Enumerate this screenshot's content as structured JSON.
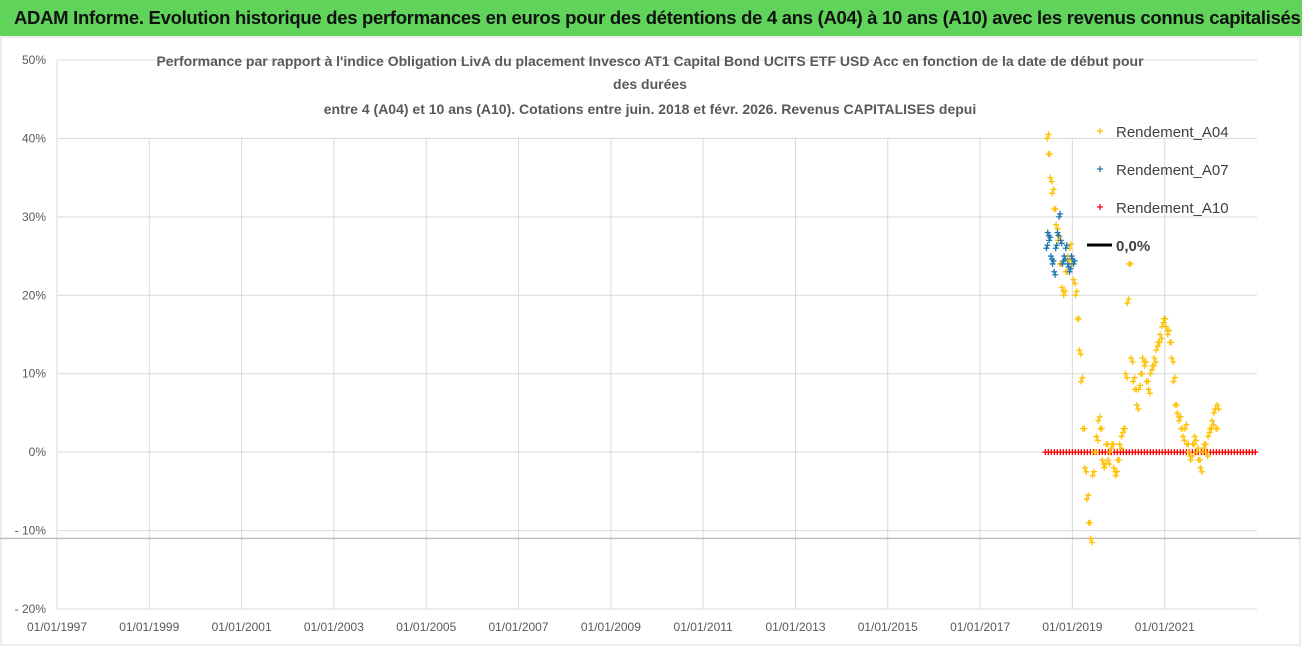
{
  "banner": {
    "title": "ADAM Informe. Evolution historique des performances en euros pour des détentions de 4 ans (A04) à 10 ans (A10) avec les revenus connus capitalisés"
  },
  "chart_data": {
    "type": "scatter",
    "title_lines": [
      "Performance par rapport à l'indice Obligation LivA  du placement Invesco AT1 Capital Bond UCITS ETF USD Acc en fonction de la date de début pour",
      "des durées",
      "entre 4 (A04) et 10 ans (A10).  Cotations entre juin. 2018 et févr. 2026. Revenus CAPITALISES depui"
    ],
    "xlabel": "",
    "ylabel": "",
    "x_ticks": [
      "01/01/1997",
      "01/01/1999",
      "01/01/2001",
      "01/01/2003",
      "01/01/2005",
      "01/01/2007",
      "01/01/2009",
      "01/01/2011",
      "01/01/2013",
      "01/01/2015",
      "01/01/2017",
      "01/01/2019",
      "01/01/2021"
    ],
    "xlim": [
      "1997-01-01",
      "2023-01-01"
    ],
    "y_ticks": [
      "50%",
      "40%",
      "30%",
      "20%",
      "10%",
      "0%",
      "- 10%",
      "- 20%"
    ],
    "ylim": [
      -20,
      50
    ],
    "grid": true,
    "legend_position": "right",
    "reference_line_y": -11,
    "series": [
      {
        "name": "Rendement_A04",
        "color": "#ffc000",
        "marker": "+",
        "points": [
          [
            "2018-06-15",
            40
          ],
          [
            "2018-06-25",
            38
          ],
          [
            "2018-07-10",
            35
          ],
          [
            "2018-07-25",
            33
          ],
          [
            "2018-08-10",
            31
          ],
          [
            "2018-08-25",
            29
          ],
          [
            "2018-09-10",
            27
          ],
          [
            "2018-09-25",
            24
          ],
          [
            "2018-10-10",
            21
          ],
          [
            "2018-10-25",
            20
          ],
          [
            "2018-11-10",
            23
          ],
          [
            "2018-11-25",
            25
          ],
          [
            "2018-12-10",
            26
          ],
          [
            "2018-12-25",
            24
          ],
          [
            "2019-01-10",
            22
          ],
          [
            "2019-01-25",
            20
          ],
          [
            "2019-02-10",
            17
          ],
          [
            "2019-02-25",
            13
          ],
          [
            "2019-03-10",
            9
          ],
          [
            "2019-03-25",
            3
          ],
          [
            "2019-04-10",
            -2
          ],
          [
            "2019-04-25",
            -6
          ],
          [
            "2019-05-10",
            -9
          ],
          [
            "2019-05-25",
            -11
          ],
          [
            "2019-06-10",
            -3
          ],
          [
            "2019-06-25",
            0
          ],
          [
            "2019-07-10",
            2
          ],
          [
            "2019-07-25",
            4
          ],
          [
            "2019-08-10",
            3
          ],
          [
            "2019-08-25",
            -1
          ],
          [
            "2019-09-10",
            -2
          ],
          [
            "2019-09-25",
            1
          ],
          [
            "2019-10-10",
            -1
          ],
          [
            "2019-10-25",
            0
          ],
          [
            "2019-11-10",
            1
          ],
          [
            "2019-11-25",
            -2
          ],
          [
            "2019-12-10",
            -3
          ],
          [
            "2019-12-25",
            -1
          ],
          [
            "2020-01-10",
            1
          ],
          [
            "2020-01-25",
            2
          ],
          [
            "2020-02-10",
            3
          ],
          [
            "2020-02-25",
            10
          ],
          [
            "2020-03-10",
            19
          ],
          [
            "2020-03-25",
            24
          ],
          [
            "2020-04-10",
            12
          ],
          [
            "2020-04-25",
            9
          ],
          [
            "2020-05-10",
            8
          ],
          [
            "2020-05-25",
            6
          ],
          [
            "2020-06-10",
            8
          ],
          [
            "2020-06-25",
            10
          ],
          [
            "2020-07-10",
            12
          ],
          [
            "2020-07-25",
            11
          ],
          [
            "2020-08-10",
            9
          ],
          [
            "2020-08-25",
            8
          ],
          [
            "2020-09-10",
            10
          ],
          [
            "2020-09-25",
            11
          ],
          [
            "2020-10-10",
            12
          ],
          [
            "2020-10-25",
            13
          ],
          [
            "2020-11-10",
            14
          ],
          [
            "2020-11-25",
            15
          ],
          [
            "2020-12-10",
            16
          ],
          [
            "2020-12-25",
            17
          ],
          [
            "2021-01-10",
            16
          ],
          [
            "2021-01-25",
            15
          ],
          [
            "2021-02-10",
            14
          ],
          [
            "2021-02-25",
            12
          ],
          [
            "2021-03-10",
            9
          ],
          [
            "2021-03-25",
            6
          ],
          [
            "2021-04-10",
            5
          ],
          [
            "2021-04-25",
            4
          ],
          [
            "2021-05-10",
            3
          ],
          [
            "2021-05-25",
            2
          ],
          [
            "2021-06-10",
            3
          ],
          [
            "2021-06-25",
            1
          ],
          [
            "2021-07-10",
            0
          ],
          [
            "2021-07-25",
            -1
          ],
          [
            "2021-08-10",
            1
          ],
          [
            "2021-08-25",
            2
          ],
          [
            "2021-09-10",
            0
          ],
          [
            "2021-09-25",
            -1
          ],
          [
            "2021-10-10",
            -2
          ],
          [
            "2021-10-25",
            0
          ],
          [
            "2021-11-10",
            1
          ],
          [
            "2021-11-25",
            0
          ],
          [
            "2021-12-10",
            2
          ],
          [
            "2021-12-25",
            3
          ],
          [
            "2022-01-10",
            4
          ],
          [
            "2022-01-25",
            5
          ],
          [
            "2022-02-10",
            3
          ],
          [
            "2022-02-20",
            6
          ]
        ]
      },
      {
        "name": "Rendement_A07",
        "color": "#1f77b4",
        "marker": "+",
        "points": [
          [
            "2018-06-10",
            26
          ],
          [
            "2018-06-20",
            28
          ],
          [
            "2018-07-01",
            27
          ],
          [
            "2018-07-15",
            25
          ],
          [
            "2018-07-28",
            24
          ],
          [
            "2018-08-10",
            23
          ],
          [
            "2018-08-22",
            26
          ],
          [
            "2018-09-05",
            28
          ],
          [
            "2018-09-18",
            30
          ],
          [
            "2018-10-01",
            27
          ],
          [
            "2018-10-15",
            24
          ],
          [
            "2018-10-28",
            25
          ],
          [
            "2018-11-10",
            26
          ],
          [
            "2018-11-25",
            24
          ],
          [
            "2018-12-10",
            23
          ],
          [
            "2018-12-25",
            25
          ],
          [
            "2019-01-10",
            24
          ]
        ]
      },
      {
        "name": "Rendement_A10",
        "color": "#ff0000",
        "marker": "+",
        "line_from": "2018-06-01",
        "line_to": "2023-01-01",
        "value": 0
      }
    ],
    "legend": [
      {
        "label": "Rendement_A04",
        "color": "#ffc000",
        "marker": "+"
      },
      {
        "label": "Rendement_A07",
        "color": "#1f77b4",
        "marker": "+"
      },
      {
        "label": "Rendement_A10",
        "color": "#ff0000",
        "marker": "+"
      },
      {
        "label": "0,0%",
        "color": "#000000",
        "marker": "line"
      }
    ]
  }
}
